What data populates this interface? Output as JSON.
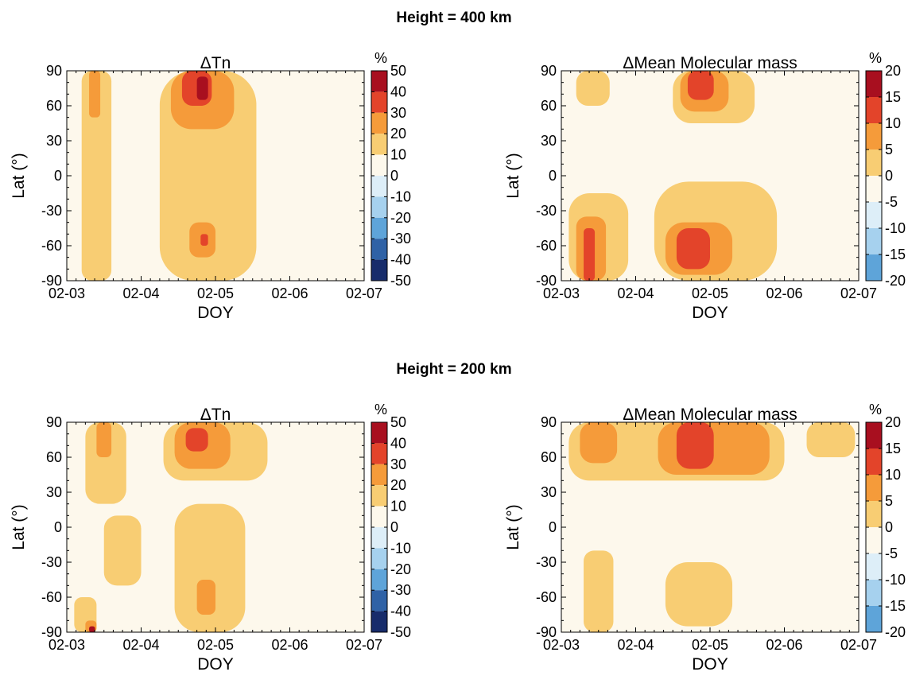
{
  "sections": [
    {
      "title": "Height = 400 km"
    },
    {
      "title": "Height = 200 km"
    }
  ],
  "chart_data": [
    {
      "type": "heatmap",
      "height_km": 400,
      "title": "ΔTn",
      "xlabel": "DOY",
      "ylabel": "Lat (°)",
      "colorbar_unit": "%",
      "xticks": [
        "02-03",
        "02-04",
        "02-05",
        "02-06",
        "02-07"
      ],
      "yticks": [
        90,
        60,
        30,
        0,
        -30,
        -60,
        -90
      ],
      "ylim": [
        -90,
        90
      ],
      "levels": [
        50,
        40,
        30,
        20,
        10,
        0,
        -10,
        -20,
        -30,
        -40,
        -50
      ],
      "colors": [
        "#fdf8ec",
        "#f8cd73",
        "#f59b3a",
        "#e3442a",
        "#a80f1f",
        "#ddeef8",
        "#a6d1ee",
        "#5ea4d9",
        "#2f62a6",
        "#172c6b"
      ],
      "regions": [
        {
          "level": 1,
          "x": [
            3.2,
            3.6
          ],
          "y": [
            -90,
            90
          ]
        },
        {
          "level": 1,
          "x": [
            4.25,
            5.55
          ],
          "y": [
            -90,
            90
          ]
        },
        {
          "level": 2,
          "x": [
            3.3,
            3.45
          ],
          "y": [
            50,
            90
          ]
        },
        {
          "level": 2,
          "x": [
            4.4,
            5.25
          ],
          "y": [
            40,
            90
          ]
        },
        {
          "level": 3,
          "x": [
            4.55,
            4.95
          ],
          "y": [
            60,
            90
          ]
        },
        {
          "level": 4,
          "x": [
            4.75,
            4.9
          ],
          "y": [
            65,
            85
          ]
        },
        {
          "level": 2,
          "x": [
            4.65,
            5.0
          ],
          "y": [
            -70,
            -40
          ]
        },
        {
          "level": 3,
          "x": [
            4.8,
            4.9
          ],
          "y": [
            -60,
            -50
          ]
        }
      ]
    },
    {
      "type": "heatmap",
      "height_km": 400,
      "title": "ΔMean Molecular mass",
      "xlabel": "DOY",
      "ylabel": "Lat (°)",
      "colorbar_unit": "%",
      "xticks": [
        "02-03",
        "02-04",
        "02-05",
        "02-06",
        "02-07"
      ],
      "yticks": [
        90,
        60,
        30,
        0,
        -30,
        -60,
        -90
      ],
      "ylim": [
        -90,
        90
      ],
      "levels": [
        20,
        15,
        10,
        5,
        0,
        -5,
        -10,
        -15,
        -20
      ],
      "colors": [
        "#fdf8ec",
        "#f8cd73",
        "#f59b3a",
        "#e3442a",
        "#a80f1f",
        "#ddeef8",
        "#a6d1ee",
        "#5ea4d9",
        "#2f62a6",
        "#172c6b"
      ],
      "regions": [
        {
          "level": 1,
          "x": [
            3.2,
            3.65
          ],
          "y": [
            60,
            90
          ]
        },
        {
          "level": 1,
          "x": [
            4.5,
            5.6
          ],
          "y": [
            45,
            90
          ]
        },
        {
          "level": 2,
          "x": [
            4.6,
            5.25
          ],
          "y": [
            55,
            90
          ]
        },
        {
          "level": 3,
          "x": [
            4.7,
            5.05
          ],
          "y": [
            65,
            90
          ]
        },
        {
          "level": 1,
          "x": [
            3.1,
            3.9
          ],
          "y": [
            -90,
            -15
          ]
        },
        {
          "level": 1,
          "x": [
            4.25,
            5.9
          ],
          "y": [
            -90,
            -5
          ]
        },
        {
          "level": 2,
          "x": [
            3.2,
            3.6
          ],
          "y": [
            -90,
            -35
          ]
        },
        {
          "level": 2,
          "x": [
            4.4,
            5.3
          ],
          "y": [
            -85,
            -40
          ]
        },
        {
          "level": 3,
          "x": [
            3.3,
            3.45
          ],
          "y": [
            -90,
            -45
          ]
        },
        {
          "level": 3,
          "x": [
            4.55,
            5.0
          ],
          "y": [
            -80,
            -45
          ]
        }
      ]
    },
    {
      "type": "heatmap",
      "height_km": 200,
      "title": "ΔTn",
      "xlabel": "DOY",
      "ylabel": "Lat (°)",
      "colorbar_unit": "%",
      "xticks": [
        "02-03",
        "02-04",
        "02-05",
        "02-06",
        "02-07"
      ],
      "yticks": [
        90,
        60,
        30,
        0,
        -30,
        -60,
        -90
      ],
      "ylim": [
        -90,
        90
      ],
      "levels": [
        50,
        40,
        30,
        20,
        10,
        0,
        -10,
        -20,
        -30,
        -40,
        -50
      ],
      "colors": [
        "#fdf8ec",
        "#f8cd73",
        "#f59b3a",
        "#e3442a",
        "#a80f1f",
        "#ddeef8",
        "#a6d1ee",
        "#5ea4d9",
        "#2f62a6",
        "#172c6b"
      ],
      "regions": [
        {
          "level": 1,
          "x": [
            3.25,
            3.8
          ],
          "y": [
            20,
            90
          ]
        },
        {
          "level": 1,
          "x": [
            4.3,
            5.7
          ],
          "y": [
            40,
            90
          ]
        },
        {
          "level": 1,
          "x": [
            3.5,
            4.0
          ],
          "y": [
            -50,
            10
          ]
        },
        {
          "level": 1,
          "x": [
            4.45,
            5.4
          ],
          "y": [
            -90,
            20
          ]
        },
        {
          "level": 1,
          "x": [
            3.1,
            3.4
          ],
          "y": [
            -90,
            -60
          ]
        },
        {
          "level": 2,
          "x": [
            3.4,
            3.6
          ],
          "y": [
            60,
            90
          ]
        },
        {
          "level": 2,
          "x": [
            4.45,
            5.2
          ],
          "y": [
            50,
            90
          ]
        },
        {
          "level": 3,
          "x": [
            4.6,
            4.9
          ],
          "y": [
            65,
            85
          ]
        },
        {
          "level": 2,
          "x": [
            4.75,
            5.0
          ],
          "y": [
            -75,
            -45
          ]
        },
        {
          "level": 2,
          "x": [
            3.25,
            3.4
          ],
          "y": [
            -90,
            -80
          ]
        },
        {
          "level": 4,
          "x": [
            3.3,
            3.38
          ],
          "y": [
            -90,
            -85
          ]
        }
      ]
    },
    {
      "type": "heatmap",
      "height_km": 200,
      "title": "ΔMean Molecular mass",
      "xlabel": "DOY",
      "ylabel": "Lat (°)",
      "colorbar_unit": "%",
      "xticks": [
        "02-03",
        "02-04",
        "02-05",
        "02-06",
        "02-07"
      ],
      "yticks": [
        90,
        60,
        30,
        0,
        -30,
        -60,
        -90
      ],
      "ylim": [
        -90,
        90
      ],
      "levels": [
        20,
        15,
        10,
        5,
        0,
        -5,
        -10,
        -15,
        -20
      ],
      "colors": [
        "#fdf8ec",
        "#f8cd73",
        "#f59b3a",
        "#e3442a",
        "#a80f1f",
        "#ddeef8",
        "#a6d1ee",
        "#5ea4d9",
        "#2f62a6",
        "#172c6b"
      ],
      "regions": [
        {
          "level": 1,
          "x": [
            3.1,
            6.0
          ],
          "y": [
            40,
            90
          ]
        },
        {
          "level": 1,
          "x": [
            6.3,
            6.95
          ],
          "y": [
            60,
            90
          ]
        },
        {
          "level": 2,
          "x": [
            3.25,
            3.75
          ],
          "y": [
            55,
            90
          ]
        },
        {
          "level": 2,
          "x": [
            4.3,
            5.8
          ],
          "y": [
            45,
            90
          ]
        },
        {
          "level": 3,
          "x": [
            4.55,
            5.05
          ],
          "y": [
            50,
            90
          ]
        },
        {
          "level": 1,
          "x": [
            3.3,
            3.7
          ],
          "y": [
            -90,
            -20
          ]
        },
        {
          "level": 1,
          "x": [
            4.4,
            5.3
          ],
          "y": [
            -85,
            -30
          ]
        }
      ]
    }
  ]
}
